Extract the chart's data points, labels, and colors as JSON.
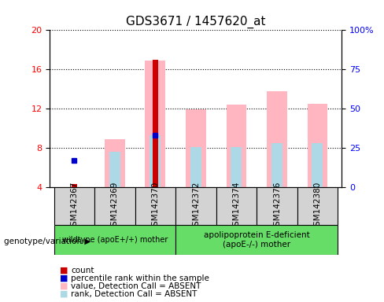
{
  "title": "GDS3671 / 1457620_at",
  "samples": [
    "GSM142367",
    "GSM142369",
    "GSM142370",
    "GSM142372",
    "GSM142374",
    "GSM142376",
    "GSM142380"
  ],
  "ylim_left": [
    4,
    20
  ],
  "ylim_right": [
    0,
    100
  ],
  "yticks_left": [
    4,
    8,
    12,
    16,
    20
  ],
  "yticks_right": [
    0,
    25,
    50,
    75,
    100
  ],
  "count_bars": {
    "values": [
      4.3,
      null,
      17.0,
      null,
      null,
      null,
      null
    ],
    "color": "#cc0000"
  },
  "rank_bars": {
    "values": [
      6.7,
      null,
      9.3,
      null,
      null,
      null,
      null
    ],
    "color": "#0000cc"
  },
  "value_absent_bars": {
    "values": [
      null,
      8.9,
      16.9,
      11.9,
      12.4,
      13.8,
      12.5
    ],
    "color": "#ffb6c1"
  },
  "rank_absent_bars": {
    "values": [
      null,
      7.6,
      9.3,
      8.1,
      8.1,
      8.5,
      8.5
    ],
    "color": "#add8e6"
  },
  "legend_items": [
    {
      "label": "count",
      "color": "#cc0000"
    },
    {
      "label": "percentile rank within the sample",
      "color": "#0000cc"
    },
    {
      "label": "value, Detection Call = ABSENT",
      "color": "#ffb6c1"
    },
    {
      "label": "rank, Detection Call = ABSENT",
      "color": "#add8e6"
    }
  ],
  "group_label_left": "wildtype (apoE+/+) mother",
  "group_label_right": "apolipoprotein E-deficient\n(apoE-/-) mother",
  "group_color": "#66dd66",
  "genotype_label": "genotype/variation",
  "bar_width": 0.5,
  "title_fontsize": 11
}
